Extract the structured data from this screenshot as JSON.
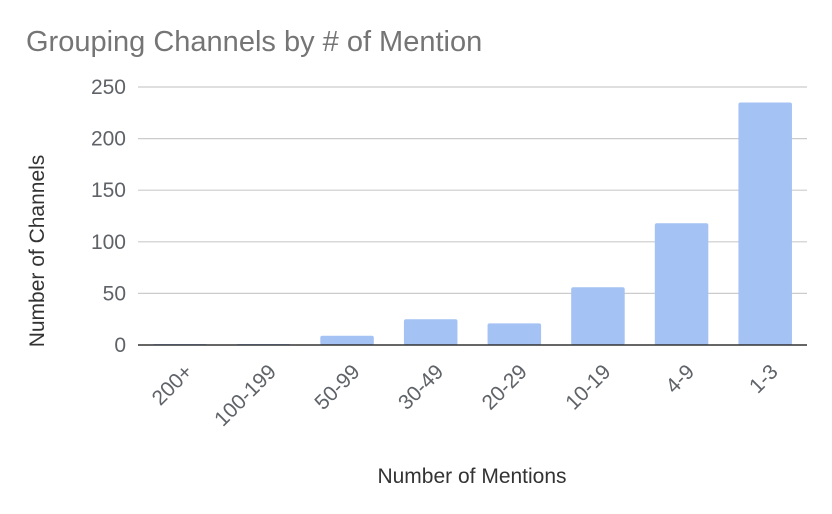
{
  "chart_data": {
    "type": "bar",
    "title": "Grouping Channels by # of Mention",
    "xlabel": "Number of Mentions",
    "ylabel": "Number of Channels",
    "categories": [
      "200+",
      "100-199",
      "50-99",
      "30-49",
      "20-29",
      "10-19",
      "4-9",
      "1-3"
    ],
    "values": [
      1,
      1,
      9,
      25,
      21,
      56,
      118,
      235
    ],
    "ylim": [
      0,
      250
    ],
    "yticks": [
      "0",
      "50",
      "100",
      "150",
      "200",
      "250"
    ],
    "grid": true,
    "legend": "none",
    "bar_color": "#a4c2f4"
  }
}
